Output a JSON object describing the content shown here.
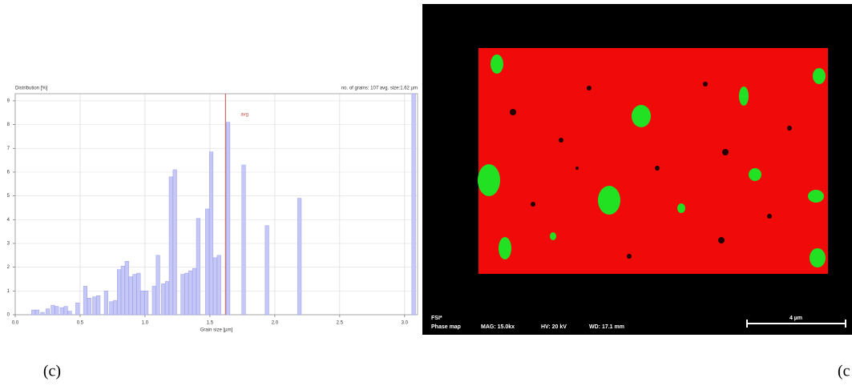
{
  "chart_data": {
    "type": "bar",
    "y_label": "Distribution [%]",
    "x_label": "Grain size [µm]",
    "subtitle": "no. of grains: 107 avg. size:1.62 µm",
    "x": [
      0.14,
      0.17,
      0.21,
      0.25,
      0.29,
      0.32,
      0.36,
      0.39,
      0.42,
      0.48,
      0.54,
      0.57,
      0.61,
      0.64,
      0.7,
      0.74,
      0.77,
      0.8,
      0.83,
      0.86,
      0.89,
      0.92,
      0.95,
      0.98,
      1.01,
      1.07,
      1.1,
      1.14,
      1.17,
      1.2,
      1.23,
      1.29,
      1.32,
      1.35,
      1.38,
      1.41,
      1.48,
      1.51,
      1.54,
      1.57,
      1.64,
      1.76,
      1.94,
      2.19,
      3.07
    ],
    "values": [
      0.2,
      0.2,
      0.1,
      0.25,
      0.4,
      0.35,
      0.3,
      0.35,
      0.15,
      0.5,
      1.2,
      0.7,
      0.75,
      0.8,
      1.0,
      0.55,
      0.6,
      1.9,
      2.05,
      2.25,
      1.6,
      1.7,
      1.75,
      1.0,
      1.0,
      1.2,
      2.5,
      1.3,
      1.4,
      5.8,
      6.1,
      1.7,
      1.75,
      1.85,
      1.95,
      4.05,
      4.45,
      6.85,
      2.4,
      2.5,
      8.1,
      6.3,
      3.75,
      4.9,
      9.3
    ],
    "color": "#c5c7f6",
    "avg_line": {
      "value": 1.62,
      "label": "avg",
      "color": "#c0504d"
    },
    "xlim": [
      0,
      3.1
    ],
    "ylim": [
      0,
      9.3
    ],
    "xticks": [
      {
        "value": 0,
        "label": "0.0"
      },
      0.5,
      {
        "value": 1,
        "label": "1.0"
      },
      1.5,
      {
        "value": 2,
        "label": "2.0"
      },
      2.5,
      {
        "value": 3,
        "label": "3.0"
      }
    ],
    "yticks": [
      0,
      1,
      2,
      3,
      4,
      5,
      6,
      7,
      8,
      9
    ],
    "grid": true
  },
  "image": {
    "label": "FSI*",
    "mode": "Phase map",
    "mag": "MAG: 15.0kx",
    "hv": "HV: 20 kV",
    "wd": "WD: 17.1 mm",
    "scale": "4 µm"
  },
  "captions": [
    "(c)",
    "(c"
  ]
}
